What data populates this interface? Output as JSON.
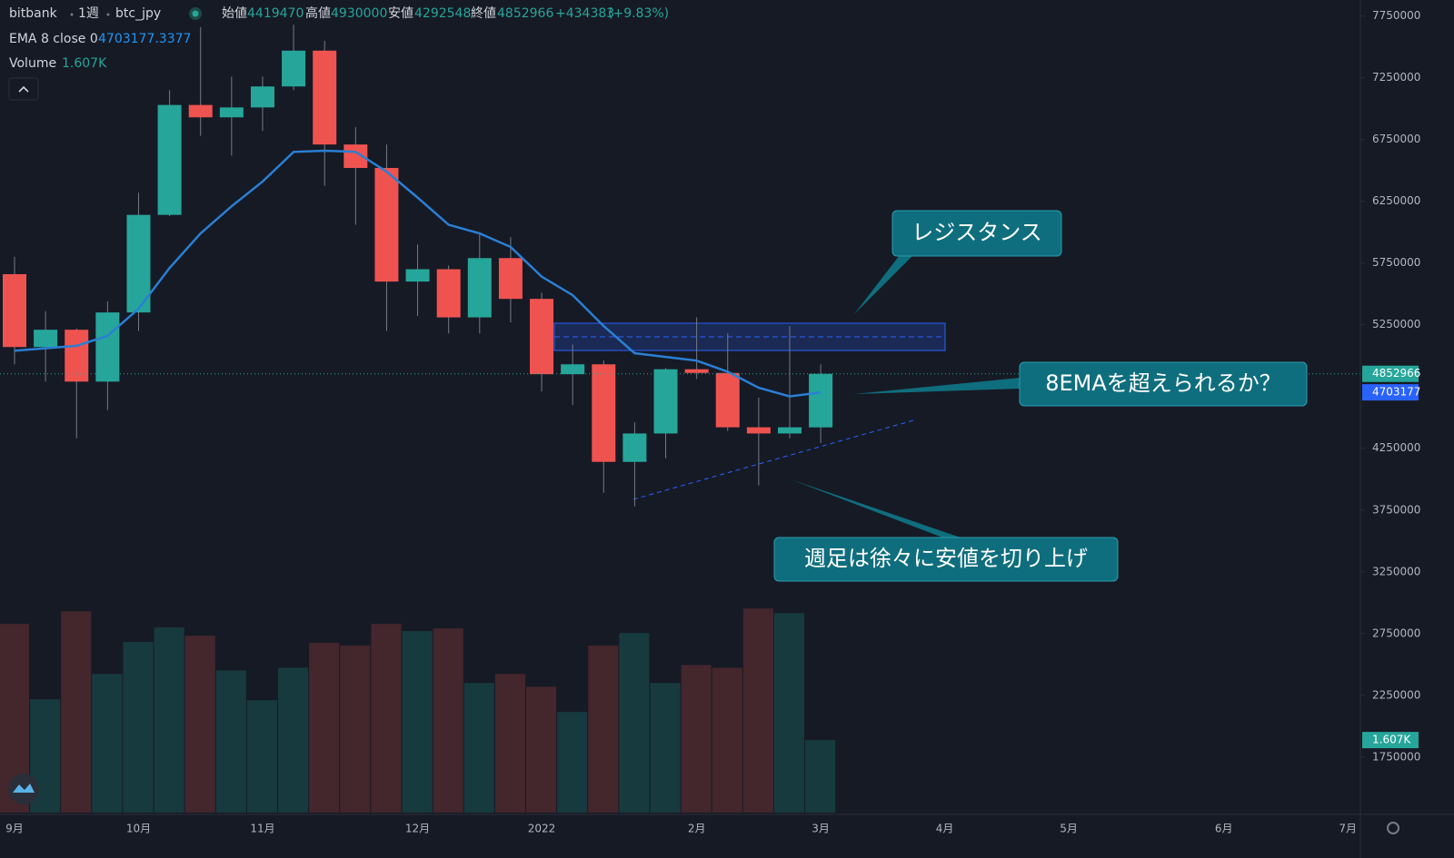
{
  "chart_data": {
    "type": "candlestick",
    "header": {
      "exchange": "bitbank",
      "interval": "1週",
      "symbol": "btc_jpy",
      "open_label": "始値",
      "high_label": "高値",
      "low_label": "安値",
      "close_label": "終値",
      "change": "+434383",
      "change_pct": "(+9.83%)"
    },
    "categories": [
      "9月",
      null,
      null,
      null,
      "10月",
      null,
      null,
      null,
      "11月",
      null,
      null,
      null,
      null,
      "12月",
      null,
      null,
      null,
      "2022",
      null,
      null,
      null,
      null,
      "2月",
      null,
      null,
      null,
      "3月",
      null,
      null,
      null,
      "4月",
      null,
      null,
      null,
      "5月",
      null,
      null,
      null,
      null,
      "6月",
      null,
      null,
      null,
      "7月"
    ],
    "open": [
      5660000,
      5070000,
      5210000,
      4790000,
      5350000,
      6140000,
      7030000,
      6930000,
      7010000,
      7180000,
      7470000,
      6710000,
      6520000,
      5600000,
      5700000,
      5310000,
      5790000,
      5460000,
      4850000,
      4930000,
      4140000,
      4370000,
      4890000,
      4860000,
      4420000,
      4370000,
      4419470,
      null,
      null,
      null,
      null,
      null,
      null,
      null,
      null,
      null,
      null,
      null,
      null,
      null,
      null,
      null,
      null,
      null
    ],
    "high": [
      5800000,
      5360000,
      5220000,
      5440000,
      6320000,
      7150000,
      7660000,
      7260000,
      7260000,
      7680000,
      7550000,
      6850000,
      6710000,
      5900000,
      5730000,
      5990000,
      5960000,
      5510000,
      5090000,
      4960000,
      4460000,
      4900000,
      5310000,
      5180000,
      4660000,
      5240000,
      4930000,
      null,
      null,
      null,
      null,
      null,
      null,
      null,
      null,
      null,
      null,
      null,
      null,
      null,
      null,
      null,
      null,
      null
    ],
    "low": [
      4930000,
      4790000,
      4330000,
      4560000,
      5200000,
      6130000,
      6780000,
      6620000,
      6820000,
      7150000,
      6375000,
      6060000,
      5200000,
      5320000,
      5180000,
      5180000,
      5270000,
      4710000,
      4600000,
      3890000,
      3780000,
      4170000,
      4810000,
      4390000,
      3950000,
      4330000,
      4292548,
      null,
      null,
      null,
      null,
      null,
      null,
      null,
      null,
      null,
      null,
      null,
      null,
      null,
      null,
      null,
      null,
      null
    ],
    "close": [
      5070000,
      5210000,
      4790000,
      5350000,
      6140000,
      7030000,
      6930000,
      7010000,
      7180000,
      7470000,
      6710000,
      6520000,
      5600000,
      5700000,
      5310000,
      5790000,
      5460000,
      4850000,
      4930000,
      4140000,
      4370000,
      4890000,
      4860000,
      4420000,
      4370000,
      4420000,
      4852966,
      null,
      null,
      null,
      null,
      null,
      null,
      null,
      null,
      null,
      null,
      null,
      null,
      null,
      null,
      null,
      null,
      null
    ],
    "up_color": "#26a69a",
    "down_color": "#ef5350",
    "ylim": [
      1300000,
      7880000
    ],
    "yticks": [
      1750000,
      2250000,
      2750000,
      3250000,
      3750000,
      4250000,
      5250000,
      5750000,
      6250000,
      6750000,
      7250000,
      7750000
    ],
    "grid": false,
    "ema": {
      "name": "EMA 8 close 0",
      "color": "#2a7fd4",
      "values": [
        5040000,
        5060000,
        5080000,
        5160000,
        5380000,
        5710000,
        5990000,
        6210000,
        6410000,
        6650000,
        6660000,
        6650000,
        6490000,
        6280000,
        6060000,
        5990000,
        5880000,
        5640000,
        5490000,
        5240000,
        5020000,
        4990000,
        4960000,
        4870000,
        4740000,
        4670000,
        4703177.3377,
        null,
        null,
        null,
        null,
        null,
        null,
        null,
        null,
        null,
        null,
        null,
        null,
        null,
        null,
        null,
        null,
        null
      ],
      "value_labels": [
        null,
        null,
        null,
        null,
        null,
        null,
        null,
        null,
        null,
        null,
        null,
        null,
        null,
        null,
        null,
        null,
        null,
        null,
        null,
        null,
        null,
        null,
        null,
        null,
        null,
        null,
        "4703177",
        null,
        null,
        null,
        null,
        null,
        null,
        null,
        null,
        null,
        null,
        null,
        null,
        null,
        null,
        null,
        null,
        null
      ]
    },
    "volume": {
      "name": "Volume",
      "up_color": "#173a3e",
      "down_color": "#44262d",
      "ylim": [
        0,
        18000
      ],
      "values": [
        4180,
        2510,
        4460,
        3070,
        3780,
        4100,
        3920,
        3150,
        2490,
        3210,
        3760,
        3700,
        4180,
        4020,
        4080,
        2870,
        3070,
        2790,
        2230,
        3700,
        3980,
        2870,
        3270,
        3210,
        4520,
        4420,
        1607,
        null,
        null,
        null,
        null,
        null,
        null,
        null,
        null,
        null,
        null,
        null,
        null,
        null,
        null,
        null,
        null,
        null
      ],
      "value_labels": [
        null,
        null,
        null,
        null,
        null,
        null,
        null,
        null,
        null,
        null,
        null,
        null,
        null,
        null,
        null,
        null,
        null,
        null,
        null,
        null,
        null,
        null,
        null,
        null,
        null,
        null,
        "1.607K",
        null,
        null,
        null,
        null,
        null,
        null,
        null,
        null,
        null,
        null,
        null,
        null,
        null,
        null,
        null,
        null,
        null
      ]
    },
    "annotations": [
      "レジスタンス",
      "8EMAを超えられるか？",
      "週足は徐々に安値を切り上げ"
    ]
  }
}
